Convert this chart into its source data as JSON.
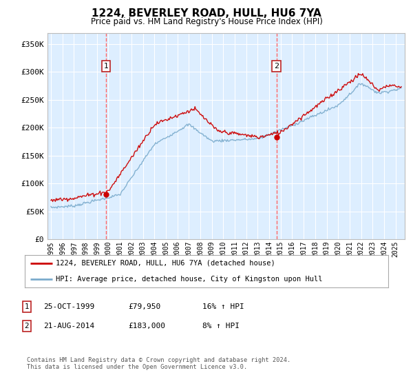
{
  "title": "1224, BEVERLEY ROAD, HULL, HU6 7YA",
  "subtitle": "Price paid vs. HM Land Registry's House Price Index (HPI)",
  "ylim": [
    0,
    370000
  ],
  "xlim_start": 1994.7,
  "xlim_end": 2025.8,
  "legend_line1": "1224, BEVERLEY ROAD, HULL, HU6 7YA (detached house)",
  "legend_line2": "HPI: Average price, detached house, City of Kingston upon Hull",
  "sale1_label": "1",
  "sale1_date": "25-OCT-1999",
  "sale1_price": "£79,950",
  "sale1_hpi": "16% ↑ HPI",
  "sale1_x": 1999.8,
  "sale1_y": 79950,
  "sale2_label": "2",
  "sale2_date": "21-AUG-2014",
  "sale2_price": "£183,000",
  "sale2_hpi": "8% ↑ HPI",
  "sale2_x": 2014.63,
  "sale2_y": 183000,
  "footnote": "Contains HM Land Registry data © Crown copyright and database right 2024.\nThis data is licensed under the Open Government Licence v3.0.",
  "line_color_red": "#cc0000",
  "line_color_blue": "#7aabcc",
  "bg_color": "#ddeeff",
  "marker_color": "#cc0000",
  "vline_color": "#ff6666",
  "annotation_box_color": "#bb2222",
  "title_fontsize": 11,
  "subtitle_fontsize": 8.5,
  "yticks": [
    0,
    50000,
    100000,
    150000,
    200000,
    250000,
    300000,
    350000
  ]
}
